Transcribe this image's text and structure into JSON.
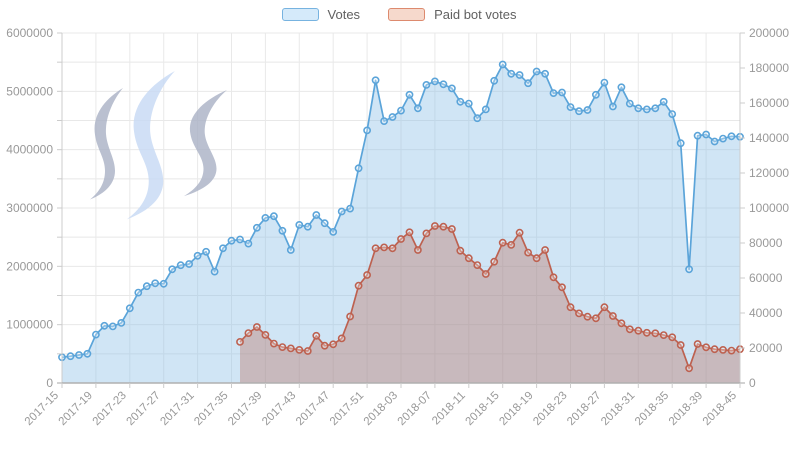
{
  "legend": {
    "items": [
      {
        "label": "Votes",
        "border_color": "#77b3e0",
        "fill_color": "#d5eafa"
      },
      {
        "label": "Paid bot votes",
        "border_color": "#dd8a6e",
        "fill_color": "#f6d9cc"
      }
    ]
  },
  "watermark": {
    "name": "steem-logo",
    "wave_colors": [
      "#a9b0c4",
      "#c6d8f4",
      "#a9b0c4"
    ],
    "opacity": 0.8
  },
  "chart_data": {
    "type": "line",
    "title": "",
    "xlabel": "",
    "ylabel_left": "",
    "ylabel_right": "",
    "grid": true,
    "legend_position": "top",
    "categories": [
      "2017-15",
      "2017-16",
      "2017-17",
      "2017-18",
      "2017-19",
      "2017-20",
      "2017-21",
      "2017-22",
      "2017-23",
      "2017-24",
      "2017-25",
      "2017-26",
      "2017-27",
      "2017-28",
      "2017-29",
      "2017-30",
      "2017-31",
      "2017-32",
      "2017-33",
      "2017-34",
      "2017-35",
      "2017-36",
      "2017-37",
      "2017-38",
      "2017-39",
      "2017-40",
      "2017-41",
      "2017-42",
      "2017-43",
      "2017-44",
      "2017-45",
      "2017-46",
      "2017-47",
      "2017-48",
      "2017-49",
      "2017-50",
      "2017-51",
      "2017-52",
      "2018-01",
      "2018-02",
      "2018-03",
      "2018-04",
      "2018-05",
      "2018-06",
      "2018-07",
      "2018-08",
      "2018-09",
      "2018-10",
      "2018-11",
      "2018-12",
      "2018-13",
      "2018-14",
      "2018-15",
      "2018-16",
      "2018-17",
      "2018-18",
      "2018-19",
      "2018-20",
      "2018-21",
      "2018-22",
      "2018-23",
      "2018-24",
      "2018-25",
      "2018-26",
      "2018-27",
      "2018-28",
      "2018-29",
      "2018-30",
      "2018-31",
      "2018-32",
      "2018-33",
      "2018-34",
      "2018-35",
      "2018-36",
      "2018-37",
      "2018-38",
      "2018-39",
      "2018-42",
      "2018-43",
      "2018-44",
      "2018-45"
    ],
    "x_label_every": 4,
    "visible_x_labels": [
      "2017-15",
      "2017-19",
      "2017-23",
      "2017-27",
      "2017-31",
      "2017-35",
      "2017-39",
      "2017-43",
      "2017-47",
      "2017-51",
      "2018-03",
      "2018-07",
      "2018-11",
      "2018-15",
      "2018-19",
      "2018-23",
      "2018-27",
      "2018-31",
      "2018-35",
      "2018-39",
      "2018-45"
    ],
    "left_axis": {
      "min": 0,
      "max": 6000000,
      "grid_step": 500000,
      "label_step": 1000000,
      "labels": [
        "0",
        "1000000",
        "2000000",
        "3000000",
        "4000000",
        "5000000",
        "6000000"
      ]
    },
    "right_axis": {
      "min": 0,
      "max": 200000,
      "label_step": 20000,
      "labels": [
        "0",
        "20000",
        "40000",
        "60000",
        "80000",
        "100000",
        "120000",
        "140000",
        "160000",
        "180000",
        "200000"
      ]
    },
    "series": [
      {
        "name": "Votes",
        "yaxis": "left",
        "line_color": "#5ba4d9",
        "area_color": "rgba(138,190,230,0.40)",
        "values": [
          440000,
          460000,
          480000,
          500000,
          830000,
          980000,
          970000,
          1030000,
          1280000,
          1550000,
          1660000,
          1710000,
          1700000,
          1950000,
          2020000,
          2040000,
          2180000,
          2250000,
          1910000,
          2310000,
          2440000,
          2460000,
          2390000,
          2660000,
          2830000,
          2860000,
          2610000,
          2280000,
          2710000,
          2680000,
          2880000,
          2740000,
          2590000,
          2940000,
          2990000,
          3680000,
          4330000,
          5190000,
          4490000,
          4560000,
          4670000,
          4940000,
          4710000,
          5110000,
          5170000,
          5120000,
          5050000,
          4820000,
          4790000,
          4540000,
          4690000,
          5180000,
          5460000,
          5300000,
          5280000,
          5140000,
          5340000,
          5300000,
          4970000,
          4980000,
          4730000,
          4660000,
          4680000,
          4940000,
          5150000,
          4740000,
          5070000,
          4790000,
          4710000,
          4690000,
          4710000,
          4820000,
          4610000,
          4110000,
          1950000,
          4240000,
          4260000,
          4140000,
          4190000,
          4230000,
          4220000
        ]
      },
      {
        "name": "Paid bot votes",
        "yaxis": "right",
        "line_color": "#bd6150",
        "area_color": "rgba(184,96,76,0.33)",
        "values": [
          null,
          null,
          null,
          null,
          null,
          null,
          null,
          null,
          null,
          null,
          null,
          null,
          null,
          null,
          null,
          null,
          null,
          null,
          null,
          null,
          null,
          23500,
          28500,
          32000,
          27500,
          22500,
          20500,
          19800,
          18900,
          18300,
          27000,
          21300,
          22100,
          25500,
          38000,
          55600,
          61700,
          77000,
          77500,
          77000,
          82300,
          86100,
          76000,
          85500,
          89700,
          89300,
          88000,
          75600,
          71300,
          67400,
          62300,
          69300,
          80200,
          78900,
          85900,
          74500,
          71300,
          76000,
          60400,
          54700,
          43300,
          39800,
          37900,
          37000,
          43300,
          38300,
          34100,
          30700,
          29900,
          28700,
          28400,
          27400,
          26100,
          21700,
          8400,
          22300,
          20400,
          19300,
          18900,
          18500,
          19300
        ]
      }
    ]
  }
}
